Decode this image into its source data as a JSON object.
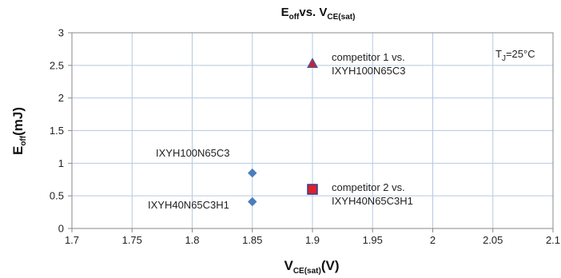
{
  "chart_data": {
    "type": "scatter",
    "title": {
      "main": "E",
      "main_sub": "off",
      "mid": "vs. V",
      "mid_sub": "CE(sat)"
    },
    "xlabel": {
      "main": "V",
      "sub": "CE(sat)",
      "unit": "(V)"
    },
    "ylabel": {
      "main": "E",
      "sub": "off",
      "unit": "(mJ)"
    },
    "xlim": [
      1.7,
      2.1
    ],
    "ylim": [
      0,
      3
    ],
    "x_ticks": [
      "1.7",
      "1.75",
      "1.8",
      "1.85",
      "1.9",
      "1.95",
      "2",
      "2.05",
      "2.1"
    ],
    "y_ticks": [
      "0",
      "0.5",
      "1",
      "1.5",
      "2",
      "2.5",
      "3"
    ],
    "grid": true,
    "points": [
      {
        "x": 1.85,
        "y": 0.85,
        "marker": "diamond",
        "color": "#4a7ebb",
        "label_lines": [
          "IXYH100N65C3"
        ]
      },
      {
        "x": 1.85,
        "y": 0.41,
        "marker": "diamond",
        "color": "#4a7ebb",
        "label_lines": [
          "IXYH40N65C3H1"
        ]
      },
      {
        "x": 1.9,
        "y": 2.53,
        "marker": "triangle",
        "color": "#c0272d",
        "edge": "#4a5aa8",
        "label_lines": [
          "competitor 1 vs.",
          "IXYH100N65C3"
        ]
      },
      {
        "x": 1.9,
        "y": 0.6,
        "marker": "square",
        "color": "#e0202a",
        "edge": "#2b3f8c",
        "label_lines": [
          "competitor 2 vs.",
          "IXYH40N65C3H1"
        ]
      }
    ],
    "annotation": {
      "main": "T",
      "sub": "J",
      "rest": "=25°C"
    }
  }
}
